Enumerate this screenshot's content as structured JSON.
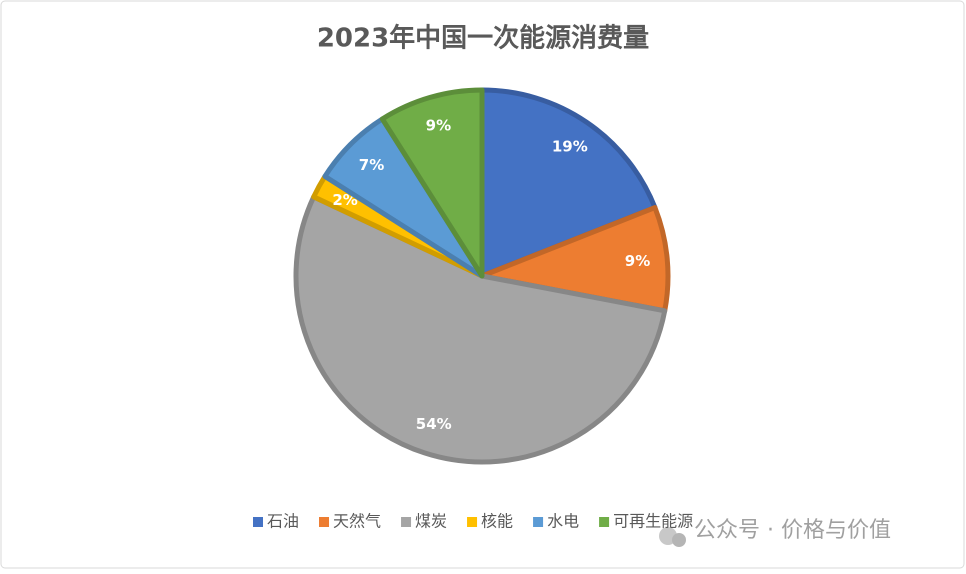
{
  "chart_data": {
    "type": "pie",
    "title": "2023年中国一次能源消费量",
    "categories": [
      "石油",
      "天然气",
      "煤炭",
      "核能",
      "水电",
      "可再生能源"
    ],
    "values": [
      19,
      9,
      54,
      2,
      7,
      9
    ],
    "value_labels": [
      "19%",
      "9%",
      "54%",
      "2%",
      "7%",
      "9%"
    ],
    "colors": [
      "#4472c4",
      "#ed7d31",
      "#a5a5a5",
      "#ffc000",
      "#5b9bd5",
      "#70ad47"
    ],
    "legend": "bottom"
  },
  "watermark": "公众号 · 价格与价值"
}
